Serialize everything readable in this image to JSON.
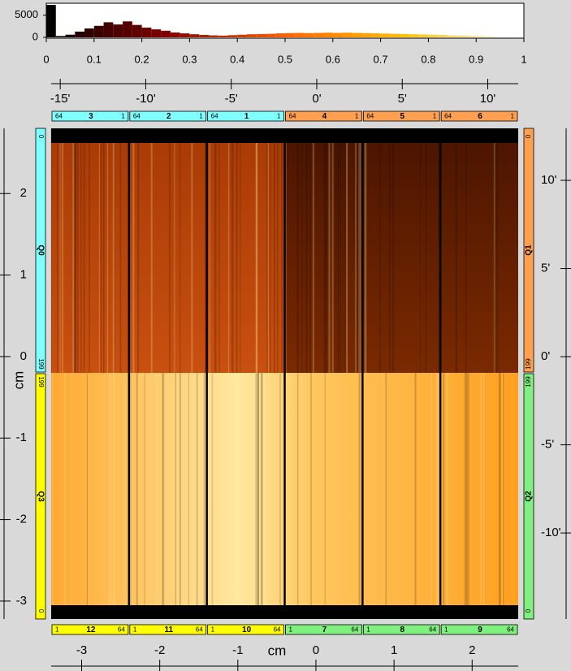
{
  "chart_data": [
    {
      "type": "histogram",
      "bins": [
        0,
        0.02,
        0.04,
        0.06,
        0.08,
        0.1,
        0.12,
        0.14,
        0.16,
        0.18,
        0.2,
        0.22,
        0.24,
        0.26,
        0.28,
        0.3,
        0.32,
        0.34,
        0.36,
        0.38,
        0.4,
        0.42,
        0.44,
        0.46,
        0.48,
        0.5,
        0.52,
        0.54,
        0.56,
        0.58,
        0.6,
        0.62,
        0.64,
        0.66,
        0.68,
        0.7,
        0.72,
        0.74,
        0.76,
        0.78,
        0.8,
        0.82,
        0.84,
        0.86,
        0.88,
        0.9,
        0.92,
        0.94,
        0.96,
        0.98,
        1
      ],
      "values": [
        7300,
        300,
        600,
        1300,
        2000,
        2600,
        3400,
        2900,
        3600,
        2800,
        2200,
        1800,
        1500,
        1100,
        900,
        700,
        550,
        450,
        400,
        500,
        600,
        700,
        750,
        800,
        900,
        950,
        1000,
        950,
        1000,
        1050,
        1000,
        1050,
        1000,
        950,
        900,
        850,
        800,
        750,
        700,
        650,
        600,
        550,
        450,
        400,
        350,
        300,
        200,
        100,
        50,
        0
      ],
      "xlim": [
        0,
        1
      ],
      "xticks": [
        0,
        0.1,
        0.2,
        0.3,
        0.4,
        0.5,
        0.6,
        0.7,
        0.8,
        0.9,
        1
      ],
      "ylim": [
        0,
        7500
      ],
      "yticks": [
        0,
        5000
      ]
    },
    {
      "type": "image",
      "xlabel": "cm",
      "ylabel": "cm",
      "xlim": [
        -3.39,
        2.59
      ],
      "xticks": [
        -3,
        -2,
        -1,
        0,
        1,
        2
      ],
      "ylim": [
        -3.22,
        2.8
      ],
      "yticks": [
        -3,
        -2,
        -1,
        0,
        1,
        2
      ],
      "x2lim": [
        -15.53,
        11.78
      ],
      "x2ticks": [
        {
          "value": -15,
          "label": "-15'"
        },
        {
          "value": -10,
          "label": "-10'"
        },
        {
          "value": -5,
          "label": "-5'"
        },
        {
          "value": 0,
          "label": "0'"
        },
        {
          "value": 5,
          "label": "5'"
        },
        {
          "value": 10,
          "label": "10'"
        }
      ],
      "y2lim": [
        -14.88,
        12.95
      ],
      "y2ticks": [
        {
          "value": -10,
          "label": "-10'"
        },
        {
          "value": -5,
          "label": "-5'"
        },
        {
          "value": 0,
          "label": "0'"
        },
        {
          "value": 5,
          "label": "5'"
        },
        {
          "value": 10,
          "label": "10'"
        }
      ],
      "top_chips": [
        {
          "label": "3",
          "start": 64,
          "end": 1,
          "color": "#80ffff"
        },
        {
          "label": "2",
          "start": 64,
          "end": 1,
          "color": "#80ffff"
        },
        {
          "label": "1",
          "start": 64,
          "end": 1,
          "color": "#80ffff"
        },
        {
          "label": "4",
          "start": 64,
          "end": 1,
          "color": "#ffa050"
        },
        {
          "label": "5",
          "start": 64,
          "end": 1,
          "color": "#ffa050"
        },
        {
          "label": "6",
          "start": 64,
          "end": 1,
          "color": "#ffa050"
        }
      ],
      "bottom_chips": [
        {
          "label": "12",
          "start": 1,
          "end": 64,
          "color": "#ffff00"
        },
        {
          "label": "11",
          "start": 1,
          "end": 64,
          "color": "#ffff00"
        },
        {
          "label": "10",
          "start": 1,
          "end": 64,
          "color": "#ffff00"
        },
        {
          "label": "7",
          "start": 1,
          "end": 64,
          "color": "#80f080"
        },
        {
          "label": "8",
          "start": 1,
          "end": 64,
          "color": "#80f080"
        },
        {
          "label": "9",
          "start": 1,
          "end": 64,
          "color": "#80f080"
        }
      ],
      "quadrants": [
        {
          "label": "Q0",
          "side": "left",
          "half": "top",
          "top": 0,
          "bottom": 199,
          "color": "#80ffff"
        },
        {
          "label": "Q3",
          "side": "left",
          "half": "bottom",
          "top": 199,
          "bottom": 0,
          "color": "#ffff00"
        },
        {
          "label": "Q1",
          "side": "right",
          "half": "top",
          "top": 0,
          "bottom": 199,
          "color": "#ffa050"
        },
        {
          "label": "Q2",
          "side": "right",
          "half": "bottom",
          "top": 199,
          "bottom": 0,
          "color": "#80f080"
        }
      ]
    }
  ]
}
